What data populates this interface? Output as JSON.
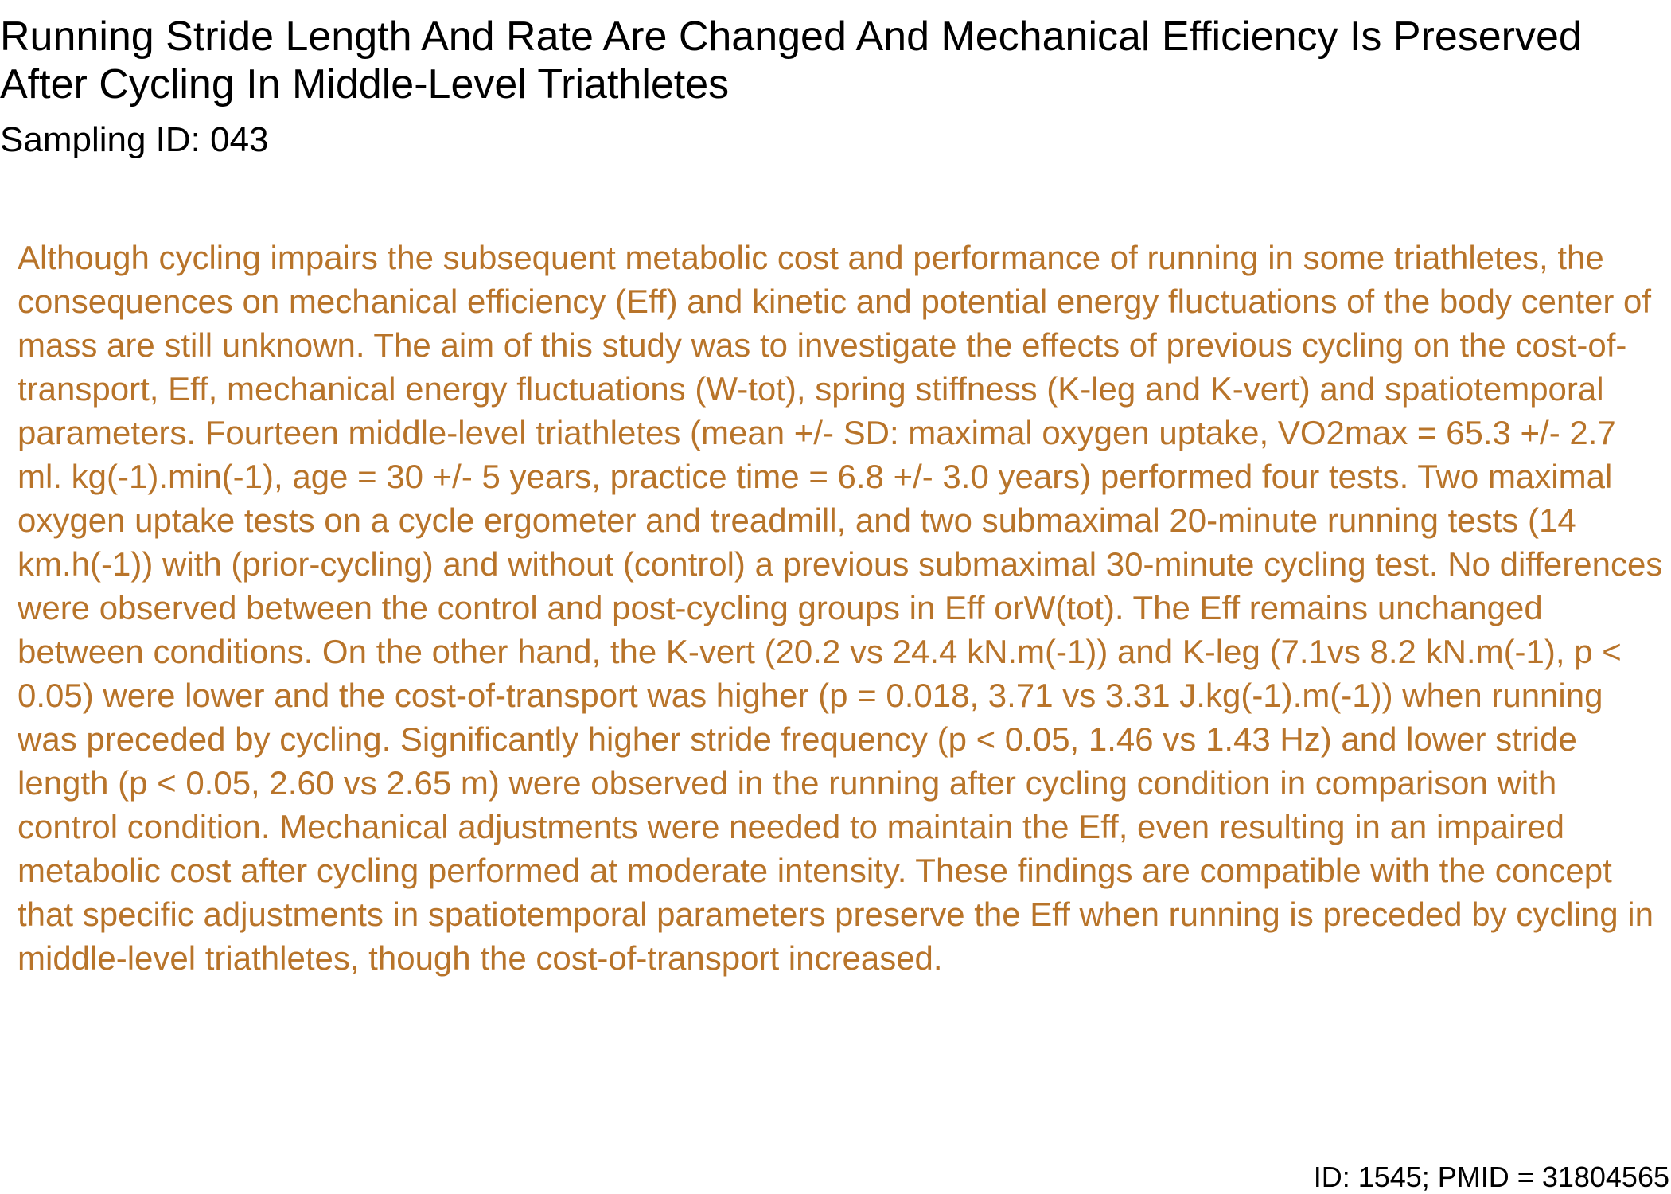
{
  "document": {
    "title": "Running Stride Length And Rate Are Changed And Mechanical Efficiency Is Preserved After Cycling In Middle-Level Triathletes",
    "sampling_id": "Sampling ID: 043",
    "abstract": "Although cycling impairs the subsequent metabolic cost and performance of running in some triathletes, the consequences on mechanical efficiency (Eff) and kinetic and potential energy fluctuations of the body center of mass are still unknown. The aim of this study was to investigate the effects of previous cycling on the cost-of-transport, Eff, mechanical energy fluctuations (W-tot), spring stiffness (K-leg and K-vert) and spatiotemporal parameters. Fourteen middle-level triathletes (mean +/- SD: maximal oxygen uptake, VO2max = 65.3 +/- 2.7 ml. kg(-1).min(-1), age = 30 +/- 5 years, practice time = 6.8 +/- 3.0 years) performed four tests. Two maximal oxygen uptake tests on a cycle ergometer and treadmill, and two submaximal 20-minute running tests (14 km.h(-1)) with (prior-cycling) and without (control) a previous submaximal 30-minute cycling test. No differences were observed between the control and post-cycling groups in Eff orW(tot). The Eff remains unchanged between conditions. On the other hand, the K-vert (20.2 vs 24.4 kN.m(-1)) and K-leg (7.1vs 8.2 kN.m(-1), p < 0.05) were lower and the cost-of-transport was higher (p = 0.018, 3.71 vs 3.31 J.kg(-1).m(-1)) when running was preceded by cycling. Significantly higher stride frequency (p < 0.05, 1.46 vs 1.43 Hz) and lower stride length (p < 0.05, 2.60 vs 2.65 m) were observed in the running after cycling condition in comparison with control condition. Mechanical adjustments were needed to maintain the Eff, even resulting in an impaired metabolic cost after cycling performed at moderate intensity. These findings are compatible with the concept that specific adjustments in spatiotemporal parameters preserve the Eff when running is preceded by cycling in middle-level triathletes, though the cost-of-transport increased.",
    "footer_id": "ID: 1545; PMID = 31804565"
  },
  "colors": {
    "title_text": "#000000",
    "abstract_text": "#b8742a",
    "background": "#ffffff"
  }
}
